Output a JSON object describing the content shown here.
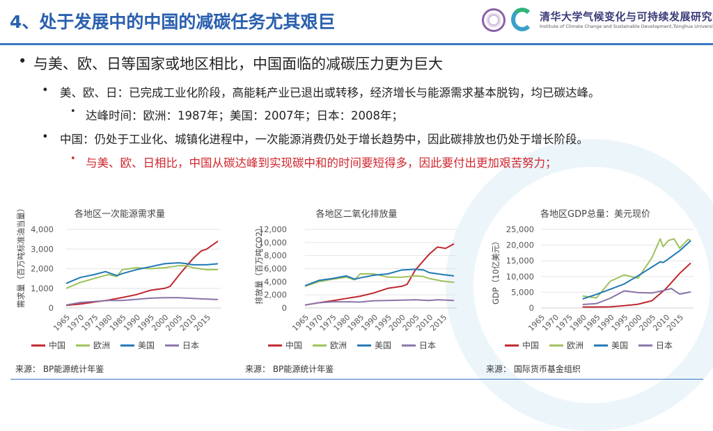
{
  "header": {
    "title": "4、处于发展中的中国的减碳任务尤其艰巨",
    "org_cn": "清华大学气候变化与可持续发展研究院",
    "org_en": "Institute of Climate Change and Sustainable Development,Tsinghua University",
    "accent": "#2a5fae"
  },
  "bullets": [
    {
      "text": "与美、欧、日等国家或地区相比，中国面临的减碳压力更为巨大",
      "level": 1
    },
    {
      "text": "美、欧、日：已完成工业化阶段，高能耗产业已退出或转移，经济增长与能源需求基本脱钩，均已碳达峰。",
      "level": 2
    },
    {
      "text": "达峰时间：欧洲：1987年；美国：2007年；日本：2008年；",
      "level": 3
    },
    {
      "text": "中国：仍处于工业化、城镇化进程中，一次能源消费仍处于增长趋势中，因此碳排放也仍处于增长阶段。",
      "level": 2
    },
    {
      "text": "与美、欧、日相比，中国从碳达峰到实现碳中和的时间要短得多，因此要付出更加艰苦努力；",
      "level": 3,
      "color": "#d0262d"
    }
  ],
  "bullet_glyph": "•",
  "series_colors": {
    "中国": "#c0262d",
    "欧洲": "#9dc15a",
    "美国": "#1f78b4",
    "日本": "#8a73a8"
  },
  "chart_data": [
    {
      "type": "line",
      "title": "各地区一次能源需求量",
      "ylabel": "需求量（百万吨标准油当量）",
      "ylim": [
        0,
        4000
      ],
      "yticks": [
        "0",
        "1,000",
        "2,000",
        "3,000",
        "4,000"
      ],
      "xticks": [
        "1965",
        "1970",
        "1975",
        "1980",
        "1985",
        "1990",
        "1995",
        "2000",
        "2005",
        "2010",
        "2015"
      ],
      "xlim": [
        1965,
        2019
      ],
      "grid": true,
      "legend": "bottom",
      "source": "来源：  BP能源统计年鉴",
      "series": [
        {
          "name": "中国",
          "x": [
            1965,
            1970,
            1975,
            1980,
            1985,
            1990,
            1995,
            2000,
            2002,
            2005,
            2010,
            2013,
            2015,
            2019
          ],
          "y": [
            130,
            200,
            300,
            400,
            530,
            680,
            900,
            1000,
            1100,
            1650,
            2500,
            2900,
            3000,
            3400
          ]
        },
        {
          "name": "欧洲",
          "x": [
            1965,
            1970,
            1975,
            1980,
            1983,
            1985,
            1990,
            1995,
            2000,
            2005,
            2008,
            2010,
            2015,
            2019
          ],
          "y": [
            1000,
            1300,
            1500,
            1700,
            1600,
            1950,
            2050,
            2000,
            2050,
            2150,
            2150,
            2050,
            1950,
            1950
          ]
        },
        {
          "name": "美国",
          "x": [
            1965,
            1970,
            1975,
            1979,
            1983,
            1985,
            1990,
            1995,
            2000,
            2005,
            2008,
            2010,
            2015,
            2019
          ],
          "y": [
            1250,
            1550,
            1700,
            1850,
            1650,
            1750,
            1950,
            2100,
            2250,
            2300,
            2250,
            2200,
            2200,
            2250
          ]
        },
        {
          "name": "日本",
          "x": [
            1965,
            1970,
            1975,
            1980,
            1985,
            1990,
            1995,
            2000,
            2005,
            2010,
            2015,
            2019
          ],
          "y": [
            150,
            280,
            330,
            380,
            380,
            440,
            500,
            520,
            520,
            490,
            450,
            430
          ]
        }
      ]
    },
    {
      "type": "line",
      "title": "各地区二氧化排放量",
      "ylabel": "排放量（百万吨CO2）",
      "ylim": [
        0,
        12000
      ],
      "yticks": [
        "0",
        "2,000",
        "4,000",
        "6,000",
        "8,000",
        "10,000",
        "12,000"
      ],
      "xticks": [
        "1965",
        "1970",
        "1975",
        "1980",
        "1985",
        "1990",
        "1995",
        "2000",
        "2005",
        "2010",
        "2015"
      ],
      "xlim": [
        1965,
        2019
      ],
      "grid": true,
      "legend": "bottom",
      "source": "来源：  BP能源统计年鉴",
      "series": [
        {
          "name": "中国",
          "x": [
            1965,
            1970,
            1975,
            1980,
            1985,
            1990,
            1995,
            2000,
            2002,
            2005,
            2010,
            2013,
            2016,
            2019
          ],
          "y": [
            450,
            800,
            1100,
            1450,
            1800,
            2300,
            3000,
            3300,
            3600,
            5800,
            8200,
            9300,
            9100,
            9800
          ]
        },
        {
          "name": "欧洲",
          "x": [
            1965,
            1970,
            1975,
            1980,
            1983,
            1985,
            1990,
            1995,
            2000,
            2005,
            2008,
            2010,
            2015,
            2019
          ],
          "y": [
            3300,
            4000,
            4400,
            4700,
            4300,
            5200,
            5200,
            4700,
            4700,
            4900,
            4800,
            4500,
            4100,
            3900
          ]
        },
        {
          "name": "美国",
          "x": [
            1965,
            1970,
            1975,
            1980,
            1983,
            1985,
            1990,
            1995,
            2000,
            2005,
            2008,
            2010,
            2015,
            2019
          ],
          "y": [
            3400,
            4200,
            4500,
            4900,
            4400,
            4600,
            5000,
            5200,
            5800,
            5900,
            5800,
            5400,
            5100,
            4900
          ]
        },
        {
          "name": "日本",
          "x": [
            1965,
            1970,
            1975,
            1980,
            1985,
            1990,
            1995,
            2000,
            2005,
            2010,
            2013,
            2019
          ],
          "y": [
            450,
            800,
            950,
            950,
            900,
            1100,
            1150,
            1200,
            1250,
            1150,
            1250,
            1150
          ]
        }
      ]
    },
    {
      "type": "line",
      "title": "各地区GDP总量：美元现价",
      "ylabel": "GDP（10亿美元）",
      "ylim": [
        0,
        25000
      ],
      "yticks": [
        "0",
        "5,000",
        "10,000",
        "15,000",
        "20,000",
        "25,000"
      ],
      "xticks": [
        "1965",
        "1970",
        "1975",
        "1980",
        "1985",
        "1990",
        "1995",
        "2000",
        "2005",
        "2010",
        "2015"
      ],
      "xlim": [
        1965,
        2019
      ],
      "grid": true,
      "legend": "bottom",
      "source": "来源：  国际货币基金组织",
      "series": [
        {
          "name": "中国",
          "x": [
            1980,
            1985,
            1990,
            1995,
            2000,
            2005,
            2010,
            2015,
            2019
          ],
          "y": [
            300,
            310,
            360,
            730,
            1200,
            2300,
            6100,
            11000,
            14300
          ]
        },
        {
          "name": "欧洲",
          "x": [
            1980,
            1985,
            1990,
            1995,
            2000,
            2005,
            2008,
            2009,
            2011,
            2013,
            2015,
            2018,
            2019
          ],
          "y": [
            3800,
            3200,
            8500,
            10500,
            9500,
            16000,
            22000,
            19500,
            21500,
            22000,
            19000,
            21800,
            21500
          ]
        },
        {
          "name": "美国",
          "x": [
            1980,
            1985,
            1990,
            1995,
            2000,
            2005,
            2008,
            2009,
            2010,
            2015,
            2019
          ],
          "y": [
            2850,
            4340,
            5960,
            7640,
            10250,
            13040,
            14700,
            14450,
            15000,
            18200,
            21400
          ]
        },
        {
          "name": "日本",
          "x": [
            1980,
            1985,
            1990,
            1995,
            2000,
            2005,
            2010,
            2012,
            2015,
            2019
          ],
          "y": [
            1100,
            1400,
            3100,
            5450,
            4900,
            4750,
            5700,
            6200,
            4400,
            5100
          ]
        }
      ]
    }
  ]
}
